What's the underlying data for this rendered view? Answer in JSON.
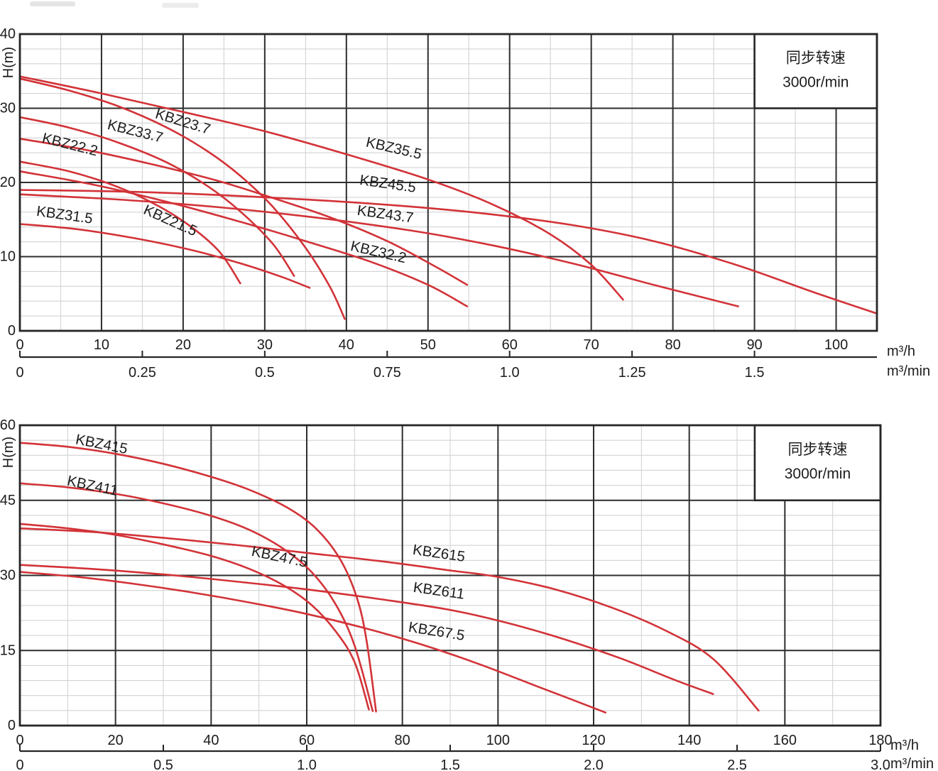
{
  "colors": {
    "curve": "#d23338",
    "grid_major": "#2e2e2e",
    "grid_minor": "#d3d3d3",
    "border": "#262626",
    "text": "#1c1c1c",
    "legend_bg": "#ffffff"
  },
  "chart_data": [
    {
      "type": "line",
      "title": "KBZ pump performance curves (2/3/4 series)",
      "ylabel": "H(m)",
      "xlabel": "m³/h",
      "x2label": "m³/min",
      "xlim": [
        0,
        105
      ],
      "ylim": [
        0,
        40
      ],
      "x_minor_step": 5,
      "y_minor_step": 2,
      "x2_scale": 60,
      "grid": true,
      "legend": {
        "line1": "同步转速",
        "line2": "3000r/min",
        "box": {
          "x1": 90,
          "y1": 30,
          "x2": 105,
          "y2": 40
        }
      },
      "x_ticks": [
        {
          "v": 0,
          "t": "0"
        },
        {
          "v": 10,
          "t": "10"
        },
        {
          "v": 20,
          "t": "20"
        },
        {
          "v": 30,
          "t": "30"
        },
        {
          "v": 40,
          "t": "40"
        },
        {
          "v": 50,
          "t": "50"
        },
        {
          "v": 60,
          "t": "60"
        },
        {
          "v": 70,
          "t": "70"
        },
        {
          "v": 80,
          "t": "80"
        },
        {
          "v": 90,
          "t": "90"
        },
        {
          "v": 100,
          "t": "100"
        }
      ],
      "y_ticks": [
        {
          "v": 0,
          "t": "0"
        },
        {
          "v": 10,
          "t": "10"
        },
        {
          "v": 20,
          "t": "20"
        },
        {
          "v": 30,
          "t": "30"
        },
        {
          "v": 40,
          "t": "40"
        }
      ],
      "x2_ticks": [
        {
          "v": 0,
          "t": "0"
        },
        {
          "v": 0.25,
          "t": "0.25"
        },
        {
          "v": 0.5,
          "t": "0.5"
        },
        {
          "v": 0.75,
          "t": "0.75"
        },
        {
          "v": 1.0,
          "t": "1.0"
        },
        {
          "v": 1.25,
          "t": "1.25"
        },
        {
          "v": 1.5,
          "t": "1.5"
        }
      ],
      "series": [
        {
          "name": "KBZ23.7",
          "label": {
            "x": 19.8,
            "y": 27.6,
            "rot": 17
          },
          "points": [
            [
              0,
              34
            ],
            [
              6,
              32.4
            ],
            [
              12,
              30.3
            ],
            [
              18,
              27.4
            ],
            [
              23,
              24.2
            ],
            [
              27,
              20.9
            ],
            [
              31,
              16.7
            ],
            [
              35,
              11.2
            ],
            [
              38,
              5.9
            ],
            [
              39.8,
              1.6
            ]
          ]
        },
        {
          "name": "KBZ33.7",
          "label": {
            "x": 14.0,
            "y": 26.3,
            "rot": 14
          },
          "points": [
            [
              0,
              25.9
            ],
            [
              8,
              24.4
            ],
            [
              16,
              22.5
            ],
            [
              24,
              20.3
            ],
            [
              31,
              17.9
            ],
            [
              38,
              15.3
            ],
            [
              45,
              12.1
            ],
            [
              51,
              8.6
            ],
            [
              54.8,
              6.2
            ]
          ]
        },
        {
          "name": "KBZ22.2",
          "label": {
            "x": 6.0,
            "y": 24.5,
            "rot": 14
          },
          "points": [
            [
              0,
              28.8
            ],
            [
              6,
              27.4
            ],
            [
              12,
              25.4
            ],
            [
              18,
              22.7
            ],
            [
              23,
              19.5
            ],
            [
              27,
              16.1
            ],
            [
              31,
              11.7
            ],
            [
              33.6,
              7.4
            ]
          ]
        },
        {
          "name": "KBZ31.5",
          "label": {
            "x": 5.4,
            "y": 15.0,
            "rot": 8
          },
          "points": [
            [
              0,
              14.4
            ],
            [
              7,
              13.7
            ],
            [
              14,
              12.5
            ],
            [
              21,
              10.9
            ],
            [
              27,
              9.1
            ],
            [
              32,
              7.3
            ],
            [
              35.5,
              5.8
            ]
          ]
        },
        {
          "name": "KBZ21.5",
          "label": {
            "x": 18.2,
            "y": 14.3,
            "rot": 24
          },
          "points": [
            [
              0,
              22.8
            ],
            [
              6,
              21.5
            ],
            [
              12,
              19.4
            ],
            [
              17,
              16.8
            ],
            [
              21,
              14.0
            ],
            [
              24.5,
              10.6
            ],
            [
              27,
              6.4
            ]
          ]
        },
        {
          "name": "KBZ35.5",
          "label": {
            "x": 45.7,
            "y": 24.0,
            "rot": 13
          },
          "points": [
            [
              0,
              34.3
            ],
            [
              10,
              32
            ],
            [
              20,
              29.5
            ],
            [
              30,
              26.9
            ],
            [
              40,
              23.8
            ],
            [
              50,
              20.4
            ],
            [
              58,
              17
            ],
            [
              65,
              13
            ],
            [
              70,
              8.9
            ],
            [
              73.9,
              4.2
            ]
          ]
        },
        {
          "name": "KBZ45.5",
          "label": {
            "x": 45.0,
            "y": 19.2,
            "rot": 8
          },
          "points": [
            [
              0,
              19
            ],
            [
              15,
              18.7
            ],
            [
              30,
              18
            ],
            [
              45,
              17
            ],
            [
              57,
              15.8
            ],
            [
              68,
              14.2
            ],
            [
              78,
              12
            ],
            [
              88,
              8.8
            ],
            [
              97,
              5.3
            ],
            [
              104.8,
              2.4
            ]
          ]
        },
        {
          "name": "KBZ43.7",
          "label": {
            "x": 44.7,
            "y": 15.1,
            "rot": 8
          },
          "points": [
            [
              0,
              18.4
            ],
            [
              12,
              17.7
            ],
            [
              24,
              16.7
            ],
            [
              36,
              15.3
            ],
            [
              48,
              13.5
            ],
            [
              58,
              11.5
            ],
            [
              68,
              9
            ],
            [
              78,
              6.1
            ],
            [
              88,
              3.3
            ]
          ]
        },
        {
          "name": "KBZ32.2",
          "label": {
            "x": 43.8,
            "y": 10.0,
            "rot": 13
          },
          "points": [
            [
              0,
              21.5
            ],
            [
              9,
              19.7
            ],
            [
              18,
              17.4
            ],
            [
              27,
              14.7
            ],
            [
              35,
              12.1
            ],
            [
              43,
              9.3
            ],
            [
              50,
              6.2
            ],
            [
              54.8,
              3.3
            ]
          ]
        }
      ]
    },
    {
      "type": "line",
      "title": "KBZ pump performance curves (4/6 series)",
      "ylabel": "H(m)",
      "xlabel": "m³/h",
      "x2label": "m³/min",
      "xlim": [
        0,
        180
      ],
      "ylim": [
        0,
        60
      ],
      "x_minor_step": 10,
      "y_minor_step": 3,
      "x2_scale": 60,
      "grid": true,
      "legend": {
        "line1": "同步转速",
        "line2": "3000r/min",
        "box": {
          "x1": 153.7,
          "y1": 45,
          "x2": 180,
          "y2": 60
        }
      },
      "x_ticks": [
        {
          "v": 0,
          "t": "0"
        },
        {
          "v": 20,
          "t": "20"
        },
        {
          "v": 40,
          "t": "40"
        },
        {
          "v": 60,
          "t": "60"
        },
        {
          "v": 80,
          "t": "80"
        },
        {
          "v": 100,
          "t": "100"
        },
        {
          "v": 120,
          "t": "120"
        },
        {
          "v": 140,
          "t": "140"
        },
        {
          "v": 160,
          "t": "160"
        },
        {
          "v": 180,
          "t": "180"
        }
      ],
      "y_ticks": [
        {
          "v": 0,
          "t": "0"
        },
        {
          "v": 15,
          "t": "15"
        },
        {
          "v": 30,
          "t": "30"
        },
        {
          "v": 45,
          "t": "45"
        },
        {
          "v": 60,
          "t": "60"
        }
      ],
      "x2_ticks": [
        {
          "v": 0,
          "t": "0"
        },
        {
          "v": 0.5,
          "t": "0.5"
        },
        {
          "v": 1.0,
          "t": "1.0"
        },
        {
          "v": 1.5,
          "t": "1.5"
        },
        {
          "v": 2.0,
          "t": "2.0"
        },
        {
          "v": 2.5,
          "t": "2.5"
        },
        {
          "v": 3.0,
          "t": "3.0"
        }
      ],
      "series": [
        {
          "name": "KBZ415",
          "label": {
            "x": 16.9,
            "y": 55.3,
            "rot": 11
          },
          "points": [
            [
              0,
              56.5
            ],
            [
              10,
              55.7
            ],
            [
              20,
              54.3
            ],
            [
              30,
              52.3
            ],
            [
              40,
              49.7
            ],
            [
              48,
              47.1
            ],
            [
              56,
              43.5
            ],
            [
              62,
              39.3
            ],
            [
              67,
              33.2
            ],
            [
              70.5,
              25.5
            ],
            [
              72.5,
              17
            ],
            [
              74.5,
              2.8
            ]
          ]
        },
        {
          "name": "KBZ411",
          "label": {
            "x": 15.0,
            "y": 47.0,
            "rot": 12
          },
          "points": [
            [
              0,
              48.4
            ],
            [
              10,
              47.6
            ],
            [
              20,
              46.3
            ],
            [
              30,
              44.4
            ],
            [
              40,
              41.9
            ],
            [
              48,
              39.1
            ],
            [
              55,
              35.4
            ],
            [
              61,
              30.7
            ],
            [
              66,
              24.3
            ],
            [
              70,
              16
            ],
            [
              73.8,
              2.9
            ]
          ]
        },
        {
          "name": "KBZ47.5",
          "label": {
            "x": 54.1,
            "y": 32.8,
            "rot": 12
          },
          "points": [
            [
              0,
              40.3
            ],
            [
              10,
              39.4
            ],
            [
              20,
              38.1
            ],
            [
              30,
              36.2
            ],
            [
              40,
              33.9
            ],
            [
              48,
              31.3
            ],
            [
              55,
              28.1
            ],
            [
              61,
              24.1
            ],
            [
              66,
              18.9
            ],
            [
              70,
              12.7
            ],
            [
              73,
              3.2
            ]
          ]
        },
        {
          "name": "KBZ615",
          "label": {
            "x": 87.5,
            "y": 33.5,
            "rot": 8
          },
          "points": [
            [
              0,
              39.4
            ],
            [
              15,
              38.7
            ],
            [
              30,
              37.5
            ],
            [
              45,
              36.1
            ],
            [
              60,
              34.5
            ],
            [
              75,
              32.9
            ],
            [
              90,
              31
            ],
            [
              100,
              29.7
            ],
            [
              112,
              27.2
            ],
            [
              124,
              23.5
            ],
            [
              135,
              19
            ],
            [
              145,
              13.3
            ],
            [
              154.5,
              3
            ]
          ]
        },
        {
          "name": "KBZ611",
          "label": {
            "x": 87.5,
            "y": 26.0,
            "rot": 8
          },
          "points": [
            [
              0,
              32.1
            ],
            [
              15,
              31.3
            ],
            [
              30,
              30.2
            ],
            [
              45,
              28.8
            ],
            [
              60,
              27.2
            ],
            [
              75,
              25.3
            ],
            [
              90,
              23.1
            ],
            [
              102,
              20.5
            ],
            [
              114,
              17.2
            ],
            [
              126,
              13.3
            ],
            [
              137,
              9.1
            ],
            [
              145,
              6.3
            ]
          ]
        },
        {
          "name": "KBZ67.5",
          "label": {
            "x": 87.0,
            "y": 17.9,
            "rot": 9
          },
          "points": [
            [
              0,
              30.7
            ],
            [
              12,
              29.7
            ],
            [
              24,
              28.3
            ],
            [
              36,
              26.6
            ],
            [
              48,
              24.6
            ],
            [
              60,
              22.3
            ],
            [
              72,
              19.5
            ],
            [
              84,
              16.2
            ],
            [
              96,
              12.3
            ],
            [
              108,
              7.9
            ],
            [
              116,
              5.0
            ],
            [
              122.5,
              2.6
            ]
          ]
        }
      ]
    }
  ]
}
